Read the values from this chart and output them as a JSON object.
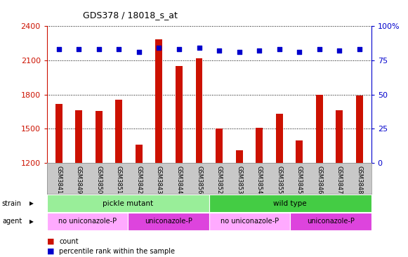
{
  "title": "GDS378 / 18018_s_at",
  "samples": [
    "GSM3841",
    "GSM3849",
    "GSM3850",
    "GSM3851",
    "GSM3842",
    "GSM3843",
    "GSM3844",
    "GSM3856",
    "GSM3852",
    "GSM3853",
    "GSM3854",
    "GSM3855",
    "GSM3845",
    "GSM3846",
    "GSM3847",
    "GSM3848"
  ],
  "counts": [
    1720,
    1660,
    1655,
    1755,
    1360,
    2280,
    2050,
    2115,
    1500,
    1310,
    1510,
    1630,
    1400,
    1800,
    1660,
    1790
  ],
  "percentiles": [
    83,
    83,
    83,
    83,
    81,
    84,
    83,
    84,
    82,
    81,
    82,
    83,
    81,
    83,
    82,
    83
  ],
  "ylim_left": [
    1200,
    2400
  ],
  "ylim_right": [
    0,
    100
  ],
  "yticks_left": [
    1200,
    1500,
    1800,
    2100,
    2400
  ],
  "yticks_right": [
    0,
    25,
    50,
    75,
    100
  ],
  "bar_color": "#cc1100",
  "dot_color": "#0000cc",
  "bg_color": "#ffffff",
  "grid_color": "#000000",
  "strain_groups": [
    {
      "label": "pickle mutant",
      "start": 0,
      "end": 8,
      "color": "#99ee99"
    },
    {
      "label": "wild type",
      "start": 8,
      "end": 16,
      "color": "#44cc44"
    }
  ],
  "agent_groups": [
    {
      "label": "no uniconazole-P",
      "start": 0,
      "end": 4,
      "color": "#ffaaff"
    },
    {
      "label": "uniconazole-P",
      "start": 4,
      "end": 8,
      "color": "#dd44dd"
    },
    {
      "label": "no uniconazole-P",
      "start": 8,
      "end": 12,
      "color": "#ffaaff"
    },
    {
      "label": "uniconazole-P",
      "start": 12,
      "end": 16,
      "color": "#dd44dd"
    }
  ],
  "left_axis_color": "#cc1100",
  "right_axis_color": "#0000cc",
  "bar_width": 0.35,
  "tick_box_color": "#c8c8c8"
}
